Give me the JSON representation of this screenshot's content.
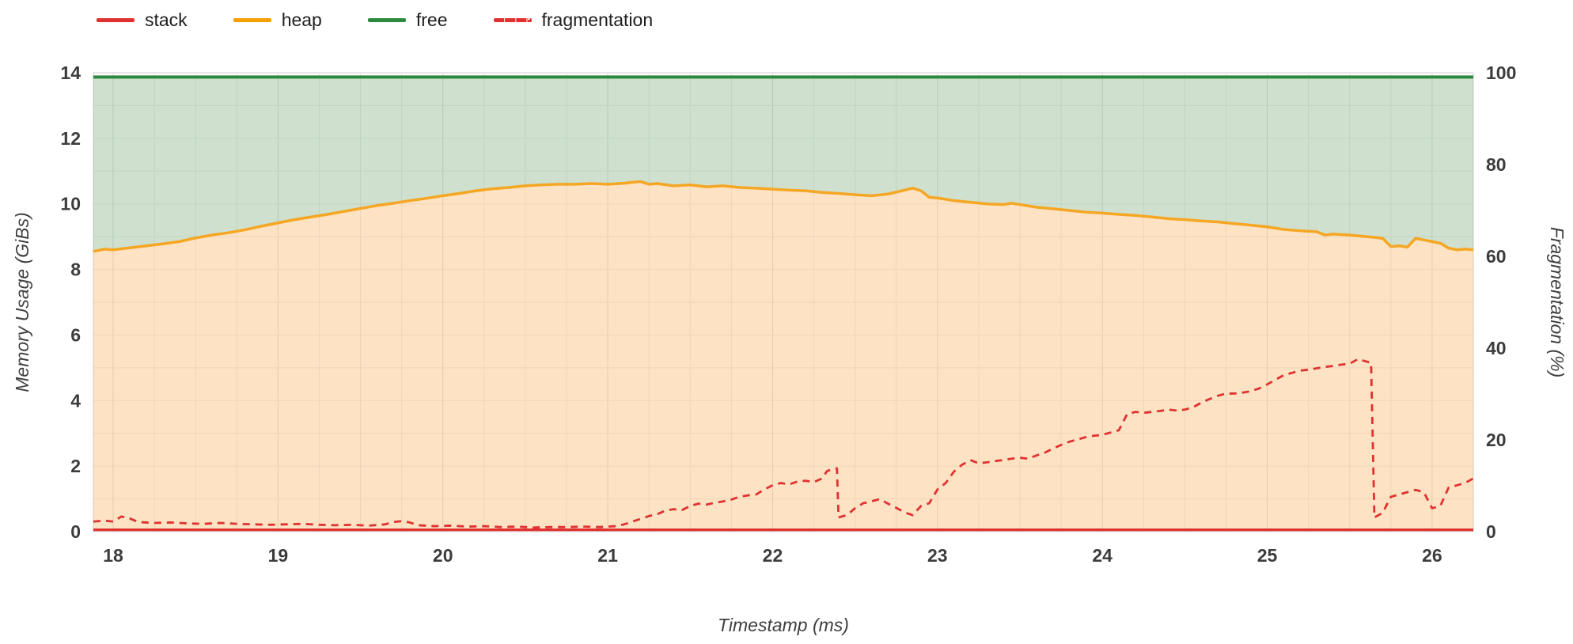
{
  "legend": {
    "items": [
      {
        "label": "stack",
        "color": "#e03131",
        "dash": false
      },
      {
        "label": "heap",
        "color": "#f59f00",
        "dash": false
      },
      {
        "label": "free",
        "color": "#2b8a3e",
        "dash": false
      },
      {
        "label": "fragmentation",
        "color": "#e03131",
        "dash": true
      }
    ]
  },
  "colors": {
    "stack_line": "#e03131",
    "stack_fill": "rgba(224,49,49,0.35)",
    "heap_line": "#f5a623",
    "heap_fill": "rgba(248,169,76,0.33)",
    "free_line": "#2b8a3e",
    "free_fill": "rgba(96,153,92,0.30)",
    "frag_line": "#e03131",
    "grid_minor": "#ececec",
    "grid_major": "#dcdcdc",
    "border": "#cfcfcf"
  },
  "chart_data": {
    "type": "area",
    "title": "",
    "xlabel": "Timestamp (ms)",
    "ylabel_left": "Memory Usage (GiBs)",
    "ylabel_right": "Fragmentation (%)",
    "xlim": [
      17.88,
      26.25
    ],
    "ylim_left": [
      0,
      14
    ],
    "ylim_right": [
      0,
      100
    ],
    "x_ticks": [
      18,
      19,
      20,
      21,
      22,
      23,
      24,
      25,
      26
    ],
    "y_ticks_left": [
      0,
      2,
      4,
      6,
      8,
      10,
      12,
      14
    ],
    "y_ticks_right": [
      0,
      20,
      40,
      60,
      80,
      100
    ],
    "grid": true,
    "legend_position": "top-left",
    "total_gib": 13.87,
    "stack_gib": 0.06,
    "series": [
      {
        "name": "stack",
        "axis": "left",
        "unit": "GiB",
        "points": [
          [
            17.88,
            0.06
          ],
          [
            26.25,
            0.06
          ]
        ]
      },
      {
        "name": "free_top",
        "axis": "left",
        "unit": "GiB",
        "points": [
          [
            17.88,
            13.87
          ],
          [
            26.25,
            13.87
          ]
        ]
      },
      {
        "name": "heap",
        "axis": "left",
        "unit": "GiB",
        "points": [
          [
            17.88,
            8.55
          ],
          [
            17.95,
            8.62
          ],
          [
            18.0,
            8.6
          ],
          [
            18.05,
            8.63
          ],
          [
            18.1,
            8.66
          ],
          [
            18.2,
            8.72
          ],
          [
            18.3,
            8.78
          ],
          [
            18.4,
            8.85
          ],
          [
            18.5,
            8.96
          ],
          [
            18.6,
            9.05
          ],
          [
            18.7,
            9.12
          ],
          [
            18.8,
            9.21
          ],
          [
            18.9,
            9.32
          ],
          [
            19.0,
            9.42
          ],
          [
            19.1,
            9.52
          ],
          [
            19.2,
            9.6
          ],
          [
            19.3,
            9.68
          ],
          [
            19.4,
            9.77
          ],
          [
            19.5,
            9.86
          ],
          [
            19.6,
            9.95
          ],
          [
            19.7,
            10.02
          ],
          [
            19.8,
            10.1
          ],
          [
            19.9,
            10.17
          ],
          [
            20.0,
            10.25
          ],
          [
            20.1,
            10.32
          ],
          [
            20.2,
            10.4
          ],
          [
            20.3,
            10.46
          ],
          [
            20.4,
            10.5
          ],
          [
            20.5,
            10.55
          ],
          [
            20.6,
            10.58
          ],
          [
            20.7,
            10.6
          ],
          [
            20.8,
            10.6
          ],
          [
            20.9,
            10.62
          ],
          [
            21.0,
            10.6
          ],
          [
            21.1,
            10.63
          ],
          [
            21.15,
            10.66
          ],
          [
            21.2,
            10.68
          ],
          [
            21.25,
            10.6
          ],
          [
            21.3,
            10.62
          ],
          [
            21.4,
            10.55
          ],
          [
            21.5,
            10.58
          ],
          [
            21.6,
            10.52
          ],
          [
            21.7,
            10.55
          ],
          [
            21.8,
            10.5
          ],
          [
            21.9,
            10.48
          ],
          [
            22.0,
            10.45
          ],
          [
            22.1,
            10.42
          ],
          [
            22.2,
            10.4
          ],
          [
            22.3,
            10.35
          ],
          [
            22.4,
            10.32
          ],
          [
            22.5,
            10.28
          ],
          [
            22.6,
            10.25
          ],
          [
            22.7,
            10.3
          ],
          [
            22.8,
            10.42
          ],
          [
            22.85,
            10.48
          ],
          [
            22.9,
            10.4
          ],
          [
            22.95,
            10.2
          ],
          [
            23.0,
            10.18
          ],
          [
            23.1,
            10.1
          ],
          [
            23.2,
            10.05
          ],
          [
            23.3,
            10.0
          ],
          [
            23.4,
            9.98
          ],
          [
            23.45,
            10.02
          ],
          [
            23.5,
            9.98
          ],
          [
            23.55,
            9.94
          ],
          [
            23.6,
            9.9
          ],
          [
            23.7,
            9.85
          ],
          [
            23.8,
            9.8
          ],
          [
            23.9,
            9.75
          ],
          [
            24.0,
            9.72
          ],
          [
            24.1,
            9.68
          ],
          [
            24.2,
            9.65
          ],
          [
            24.3,
            9.6
          ],
          [
            24.4,
            9.55
          ],
          [
            24.5,
            9.52
          ],
          [
            24.6,
            9.48
          ],
          [
            24.7,
            9.45
          ],
          [
            24.8,
            9.4
          ],
          [
            24.9,
            9.35
          ],
          [
            25.0,
            9.3
          ],
          [
            25.1,
            9.22
          ],
          [
            25.2,
            9.18
          ],
          [
            25.3,
            9.15
          ],
          [
            25.35,
            9.05
          ],
          [
            25.4,
            9.08
          ],
          [
            25.5,
            9.05
          ],
          [
            25.6,
            9.0
          ],
          [
            25.65,
            8.98
          ],
          [
            25.7,
            8.95
          ],
          [
            25.75,
            8.7
          ],
          [
            25.8,
            8.72
          ],
          [
            25.85,
            8.68
          ],
          [
            25.9,
            8.95
          ],
          [
            25.95,
            8.9
          ],
          [
            26.0,
            8.85
          ],
          [
            26.05,
            8.8
          ],
          [
            26.1,
            8.65
          ],
          [
            26.15,
            8.6
          ],
          [
            26.2,
            8.62
          ],
          [
            26.25,
            8.6
          ]
        ]
      },
      {
        "name": "fragmentation",
        "axis": "right",
        "unit": "%",
        "points": [
          [
            17.88,
            2.2
          ],
          [
            17.95,
            2.4
          ],
          [
            18.0,
            2.2
          ],
          [
            18.05,
            3.3
          ],
          [
            18.1,
            2.9
          ],
          [
            18.15,
            2.1
          ],
          [
            18.25,
            1.9
          ],
          [
            18.35,
            2.0
          ],
          [
            18.45,
            1.8
          ],
          [
            18.55,
            1.7
          ],
          [
            18.65,
            1.9
          ],
          [
            18.75,
            1.7
          ],
          [
            18.85,
            1.6
          ],
          [
            18.95,
            1.5
          ],
          [
            19.05,
            1.6
          ],
          [
            19.15,
            1.7
          ],
          [
            19.25,
            1.5
          ],
          [
            19.35,
            1.4
          ],
          [
            19.45,
            1.5
          ],
          [
            19.55,
            1.3
          ],
          [
            19.65,
            1.6
          ],
          [
            19.7,
            2.1
          ],
          [
            19.75,
            2.3
          ],
          [
            19.8,
            2.0
          ],
          [
            19.85,
            1.4
          ],
          [
            19.95,
            1.2
          ],
          [
            20.05,
            1.3
          ],
          [
            20.15,
            1.1
          ],
          [
            20.25,
            1.2
          ],
          [
            20.35,
            1.0
          ],
          [
            20.45,
            1.1
          ],
          [
            20.55,
            0.9
          ],
          [
            20.65,
            1.0
          ],
          [
            20.75,
            1.0
          ],
          [
            20.85,
            1.1
          ],
          [
            20.95,
            1.0
          ],
          [
            21.05,
            1.2
          ],
          [
            21.1,
            1.6
          ],
          [
            21.15,
            2.2
          ],
          [
            21.2,
            2.8
          ],
          [
            21.25,
            3.4
          ],
          [
            21.3,
            3.8
          ],
          [
            21.35,
            4.6
          ],
          [
            21.4,
            4.9
          ],
          [
            21.45,
            4.7
          ],
          [
            21.5,
            5.6
          ],
          [
            21.55,
            6.1
          ],
          [
            21.6,
            5.9
          ],
          [
            21.65,
            6.3
          ],
          [
            21.7,
            6.6
          ],
          [
            21.75,
            7.0
          ],
          [
            21.8,
            7.6
          ],
          [
            21.85,
            7.9
          ],
          [
            21.9,
            8.1
          ],
          [
            21.95,
            9.2
          ],
          [
            22.0,
            10.1
          ],
          [
            22.05,
            10.6
          ],
          [
            22.1,
            10.3
          ],
          [
            22.15,
            10.9
          ],
          [
            22.2,
            11.1
          ],
          [
            22.25,
            10.8
          ],
          [
            22.3,
            11.6
          ],
          [
            22.33,
            13.2
          ],
          [
            22.36,
            13.6
          ],
          [
            22.39,
            13.8
          ],
          [
            22.4,
            3.1
          ],
          [
            22.45,
            3.6
          ],
          [
            22.5,
            5.1
          ],
          [
            22.55,
            6.2
          ],
          [
            22.6,
            6.6
          ],
          [
            22.65,
            7.1
          ],
          [
            22.7,
            6.1
          ],
          [
            22.75,
            5.2
          ],
          [
            22.8,
            4.2
          ],
          [
            22.85,
            3.6
          ],
          [
            22.9,
            5.6
          ],
          [
            22.95,
            6.2
          ],
          [
            23.0,
            9.2
          ],
          [
            23.05,
            10.6
          ],
          [
            23.1,
            13.1
          ],
          [
            23.15,
            14.6
          ],
          [
            23.2,
            15.6
          ],
          [
            23.25,
            14.9
          ],
          [
            23.3,
            15.1
          ],
          [
            23.35,
            15.4
          ],
          [
            23.4,
            15.6
          ],
          [
            23.45,
            15.9
          ],
          [
            23.5,
            16.1
          ],
          [
            23.55,
            15.9
          ],
          [
            23.6,
            16.6
          ],
          [
            23.65,
            17.2
          ],
          [
            23.7,
            18.1
          ],
          [
            23.75,
            18.9
          ],
          [
            23.8,
            19.6
          ],
          [
            23.85,
            20.1
          ],
          [
            23.9,
            20.6
          ],
          [
            23.95,
            20.9
          ],
          [
            24.0,
            21.1
          ],
          [
            24.05,
            21.6
          ],
          [
            24.1,
            22.1
          ],
          [
            24.15,
            25.6
          ],
          [
            24.2,
            26.1
          ],
          [
            24.25,
            25.9
          ],
          [
            24.3,
            26.1
          ],
          [
            24.35,
            26.3
          ],
          [
            24.4,
            26.6
          ],
          [
            24.45,
            26.4
          ],
          [
            24.5,
            26.6
          ],
          [
            24.55,
            27.1
          ],
          [
            24.6,
            28.1
          ],
          [
            24.65,
            28.9
          ],
          [
            24.7,
            29.6
          ],
          [
            24.75,
            30.1
          ],
          [
            24.8,
            30.1
          ],
          [
            24.85,
            30.3
          ],
          [
            24.9,
            30.6
          ],
          [
            24.95,
            31.2
          ],
          [
            25.0,
            32.1
          ],
          [
            25.05,
            33.1
          ],
          [
            25.1,
            34.1
          ],
          [
            25.15,
            34.6
          ],
          [
            25.2,
            35.1
          ],
          [
            25.25,
            35.3
          ],
          [
            25.3,
            35.6
          ],
          [
            25.35,
            35.9
          ],
          [
            25.4,
            36.1
          ],
          [
            25.45,
            36.4
          ],
          [
            25.5,
            36.6
          ],
          [
            25.55,
            37.6
          ],
          [
            25.6,
            37.1
          ],
          [
            25.63,
            36.8
          ],
          [
            25.65,
            3.1
          ],
          [
            25.7,
            4.1
          ],
          [
            25.75,
            7.6
          ],
          [
            25.8,
            8.1
          ],
          [
            25.85,
            8.6
          ],
          [
            25.9,
            9.1
          ],
          [
            25.95,
            8.6
          ],
          [
            26.0,
            5.1
          ],
          [
            26.05,
            5.6
          ],
          [
            26.1,
            9.6
          ],
          [
            26.15,
            10.1
          ],
          [
            26.2,
            10.6
          ],
          [
            26.25,
            11.6
          ]
        ]
      }
    ]
  }
}
